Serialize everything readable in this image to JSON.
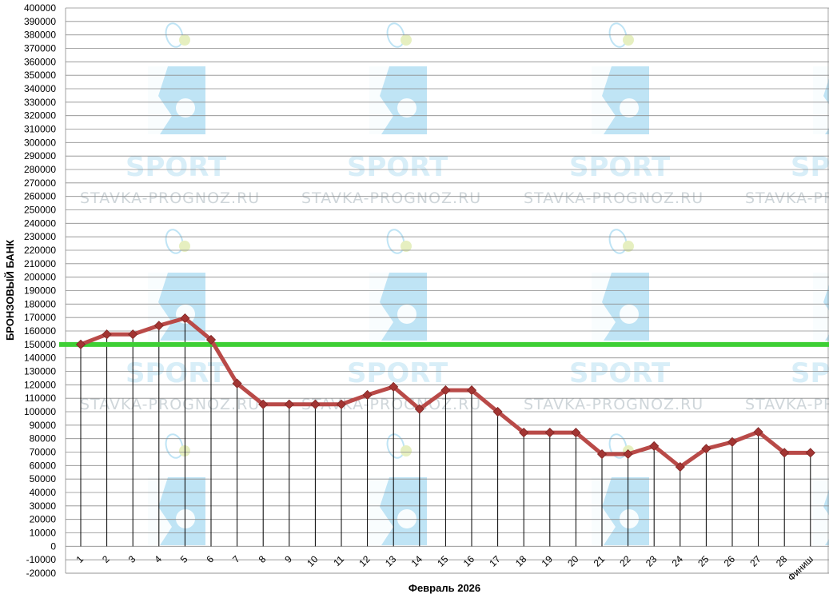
{
  "chart_data": {
    "type": "line",
    "xlabel": "Февраль 2026",
    "ylabel": "БРОНЗОВЫЙ БАНК",
    "categories": [
      "1",
      "2",
      "3",
      "4",
      "5",
      "6",
      "7",
      "8",
      "9",
      "10",
      "11",
      "12",
      "13",
      "14",
      "15",
      "16",
      "17",
      "18",
      "19",
      "20",
      "21",
      "22",
      "23",
      "24",
      "25",
      "26",
      "27",
      "28",
      "Финиш"
    ],
    "series": [
      {
        "values": [
          150000,
          157500,
          157500,
          164000,
          169500,
          153500,
          121000,
          105500,
          105500,
          105500,
          105500,
          112500,
          118500,
          102000,
          116000,
          116000,
          100000,
          84500,
          84500,
          84500,
          68500,
          68500,
          74500,
          59000,
          72500,
          77500,
          85000,
          69500,
          69500
        ]
      }
    ],
    "reference_line": {
      "value": 150000,
      "color": "#3ecf35"
    },
    "ylim": [
      -20000,
      400000
    ],
    "ytick_step": 10000,
    "grid": true,
    "drop_lines": true,
    "line_color": "#b94a48",
    "marker_color": "#a33533"
  },
  "watermark": {
    "sport": "SPORT",
    "site": "STAVKA-PROGNOZ.RU"
  }
}
